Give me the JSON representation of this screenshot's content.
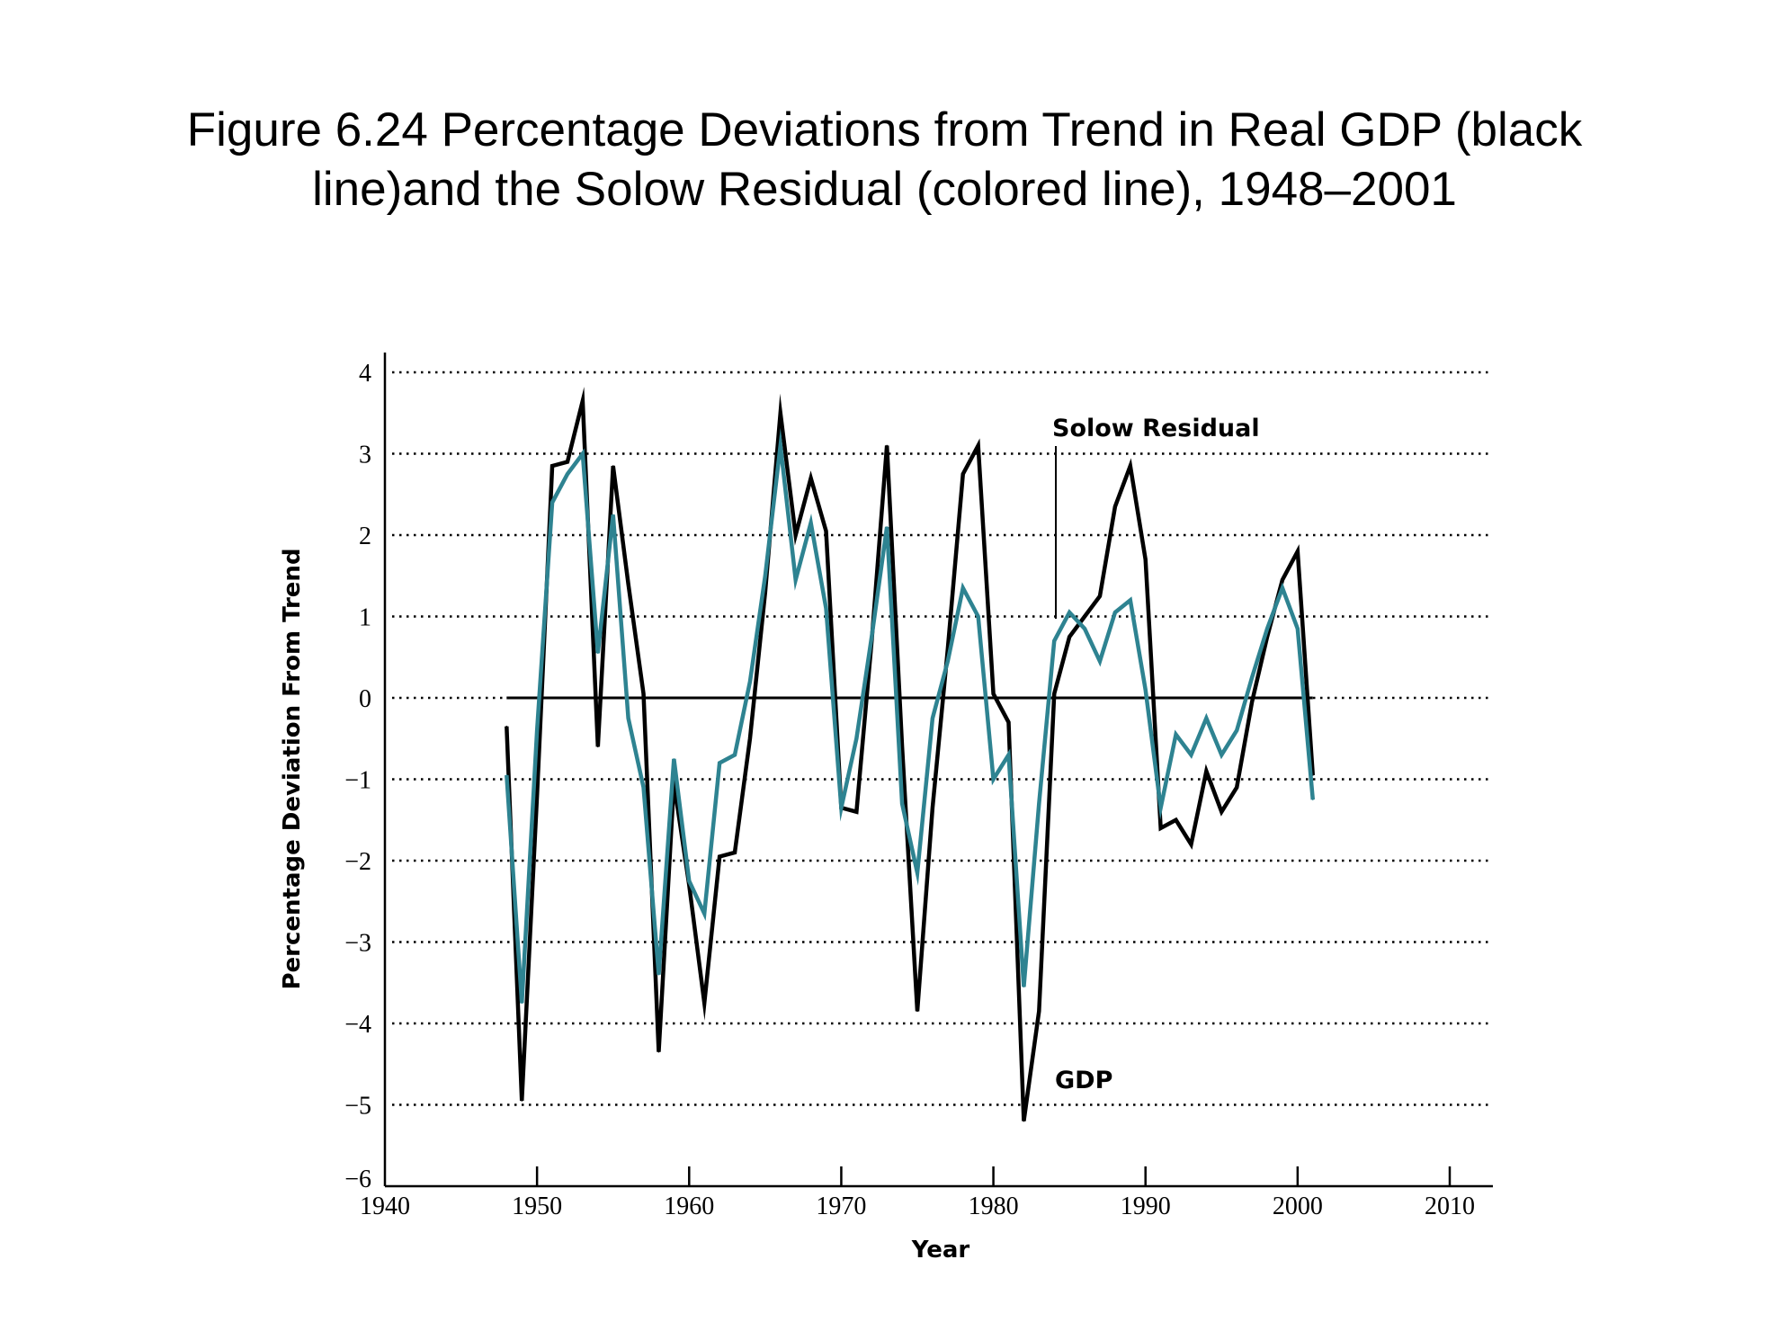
{
  "title_line1": "Figure 6.24  Percentage Deviations from Trend in Real GDP (black",
  "title_line2": "line)and the Solow Residual (colored line), 1948–2001",
  "chart_data": {
    "type": "line",
    "xlabel": "Year",
    "ylabel": "Percentage Deviation From Trend",
    "xlim": [
      1940,
      2010
    ],
    "ylim": [
      -6,
      4
    ],
    "xticks": [
      1940,
      1950,
      1960,
      1970,
      1980,
      1990,
      2000,
      2010
    ],
    "yticks": [
      4,
      3,
      2,
      1,
      0,
      -1,
      -2,
      -3,
      -4,
      -5,
      -6
    ],
    "ytick_labels": [
      "4",
      "3",
      "2",
      "1",
      "0",
      "−1",
      "−2",
      "−3",
      "−4",
      "−5",
      "−6"
    ],
    "grid": "horizontal dotted",
    "annotations": [
      {
        "text": "Solow Residual",
        "series": "Solow Residual"
      },
      {
        "text": "GDP",
        "series": "GDP"
      }
    ],
    "x": [
      1948,
      1949,
      1950,
      1951,
      1952,
      1953,
      1954,
      1955,
      1956,
      1957,
      1958,
      1959,
      1960,
      1961,
      1962,
      1963,
      1964,
      1965,
      1966,
      1967,
      1968,
      1969,
      1970,
      1971,
      1972,
      1973,
      1974,
      1975,
      1976,
      1977,
      1978,
      1979,
      1980,
      1981,
      1982,
      1983,
      1984,
      1985,
      1986,
      1987,
      1988,
      1989,
      1990,
      1991,
      1992,
      1993,
      1994,
      1995,
      1996,
      1997,
      1998,
      1999,
      2000,
      2001
    ],
    "series": [
      {
        "name": "GDP",
        "color": "#000000",
        "values": [
          -0.35,
          -4.95,
          -1.2,
          2.85,
          2.9,
          3.65,
          -0.6,
          2.85,
          1.4,
          0.05,
          -4.35,
          -1.05,
          -2.3,
          -3.75,
          -1.95,
          -1.9,
          -0.5,
          1.3,
          3.5,
          2.0,
          2.7,
          2.05,
          -1.35,
          -1.4,
          0.7,
          3.1,
          -0.6,
          -3.85,
          -1.35,
          0.6,
          2.75,
          3.1,
          0.05,
          -0.3,
          -5.2,
          -3.85,
          0.05,
          0.75,
          1.0,
          1.25,
          2.35,
          2.85,
          1.7,
          -1.6,
          -1.5,
          -1.8,
          -0.9,
          -1.4,
          -1.1,
          -0.05,
          0.75,
          1.45,
          1.8,
          -0.95
        ]
      },
      {
        "name": "Solow Residual",
        "color": "#2e8391",
        "values": [
          -0.95,
          -3.75,
          -0.4,
          2.4,
          2.75,
          3.0,
          0.55,
          2.25,
          -0.25,
          -1.1,
          -3.4,
          -0.75,
          -2.25,
          -2.65,
          -0.8,
          -0.7,
          0.2,
          1.5,
          3.1,
          1.45,
          2.15,
          1.1,
          -1.35,
          -0.5,
          0.75,
          2.1,
          -1.3,
          -2.15,
          -0.25,
          0.45,
          1.35,
          1.0,
          -1.0,
          -0.7,
          -3.55,
          -1.3,
          0.7,
          1.05,
          0.85,
          0.45,
          1.05,
          1.2,
          0.1,
          -1.35,
          -0.45,
          -0.7,
          -0.25,
          -0.7,
          -0.4,
          0.25,
          0.85,
          1.35,
          0.85,
          -1.25
        ]
      }
    ]
  }
}
